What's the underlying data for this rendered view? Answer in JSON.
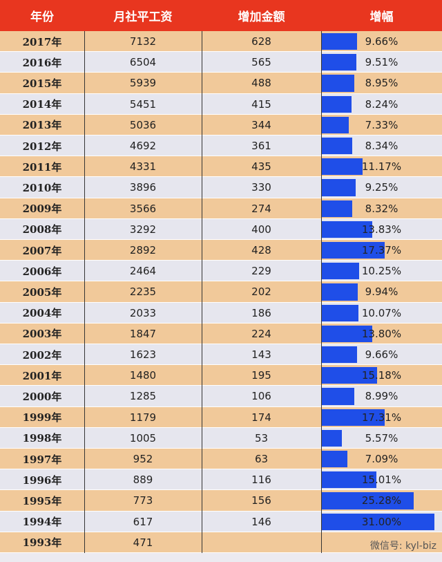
{
  "header": [
    "年份",
    "月社平工资",
    "增加金额",
    "增幅"
  ],
  "rows": [
    {
      "year": "2017年",
      "wage": 7132,
      "increase": 628,
      "growth": {
        "value": 9.66,
        "label": "9.66%"
      }
    },
    {
      "year": "2016年",
      "wage": 6504,
      "increase": 565,
      "growth": {
        "value": 9.51,
        "label": "9.51%"
      }
    },
    {
      "year": "2015年",
      "wage": 5939,
      "increase": 488,
      "growth": {
        "value": 8.95,
        "label": "8.95%"
      }
    },
    {
      "year": "2014年",
      "wage": 5451,
      "increase": 415,
      "growth": {
        "value": 8.24,
        "label": "8.24%"
      }
    },
    {
      "year": "2013年",
      "wage": 5036,
      "increase": 344,
      "growth": {
        "value": 7.33,
        "label": "7.33%"
      }
    },
    {
      "year": "2012年",
      "wage": 4692,
      "increase": 361,
      "growth": {
        "value": 8.34,
        "label": "8.34%"
      }
    },
    {
      "year": "2011年",
      "wage": 4331,
      "increase": 435,
      "growth": {
        "value": 11.17,
        "label": "11.17%"
      }
    },
    {
      "year": "2010年",
      "wage": 3896,
      "increase": 330,
      "growth": {
        "value": 9.25,
        "label": "9.25%"
      }
    },
    {
      "year": "2009年",
      "wage": 3566,
      "increase": 274,
      "growth": {
        "value": 8.32,
        "label": "8.32%"
      }
    },
    {
      "year": "2008年",
      "wage": 3292,
      "increase": 400,
      "growth": {
        "value": 13.83,
        "label": "13.83%"
      }
    },
    {
      "year": "2007年",
      "wage": 2892,
      "increase": 428,
      "growth": {
        "value": 17.37,
        "label": "17.37%"
      }
    },
    {
      "year": "2006年",
      "wage": 2464,
      "increase": 229,
      "growth": {
        "value": 10.25,
        "label": "10.25%"
      }
    },
    {
      "year": "2005年",
      "wage": 2235,
      "increase": 202,
      "growth": {
        "value": 9.94,
        "label": "9.94%"
      }
    },
    {
      "year": "2004年",
      "wage": 2033,
      "increase": 186,
      "growth": {
        "value": 10.07,
        "label": "10.07%"
      }
    },
    {
      "year": "2003年",
      "wage": 1847,
      "increase": 224,
      "growth": {
        "value": 13.8,
        "label": "13.80%"
      }
    },
    {
      "year": "2002年",
      "wage": 1623,
      "increase": 143,
      "growth": {
        "value": 9.66,
        "label": "9.66%"
      }
    },
    {
      "year": "2001年",
      "wage": 1480,
      "increase": 195,
      "growth": {
        "value": 15.18,
        "label": "15.18%"
      }
    },
    {
      "year": "2000年",
      "wage": 1285,
      "increase": 106,
      "growth": {
        "value": 8.99,
        "label": "8.99%"
      }
    },
    {
      "year": "1999年",
      "wage": 1179,
      "increase": 174,
      "growth": {
        "value": 17.31,
        "label": "17.31%"
      }
    },
    {
      "year": "1998年",
      "wage": 1005,
      "increase": 53,
      "growth": {
        "value": 5.57,
        "label": "5.57%"
      }
    },
    {
      "year": "1997年",
      "wage": 952,
      "increase": 63,
      "growth": {
        "value": 7.09,
        "label": "7.09%"
      }
    },
    {
      "year": "1996年",
      "wage": 889,
      "increase": 116,
      "growth": {
        "value": 15.01,
        "label": "15.01%"
      }
    },
    {
      "year": "1995年",
      "wage": 773,
      "increase": 156,
      "growth": {
        "value": 25.28,
        "label": "25.28%"
      }
    },
    {
      "year": "1994年",
      "wage": 617,
      "increase": 146,
      "growth": {
        "value": 31.0,
        "label": "31.00%"
      }
    },
    {
      "year": "1993年",
      "wage": 471
    }
  ],
  "watermark": "微信号: kyl-biz"
}
